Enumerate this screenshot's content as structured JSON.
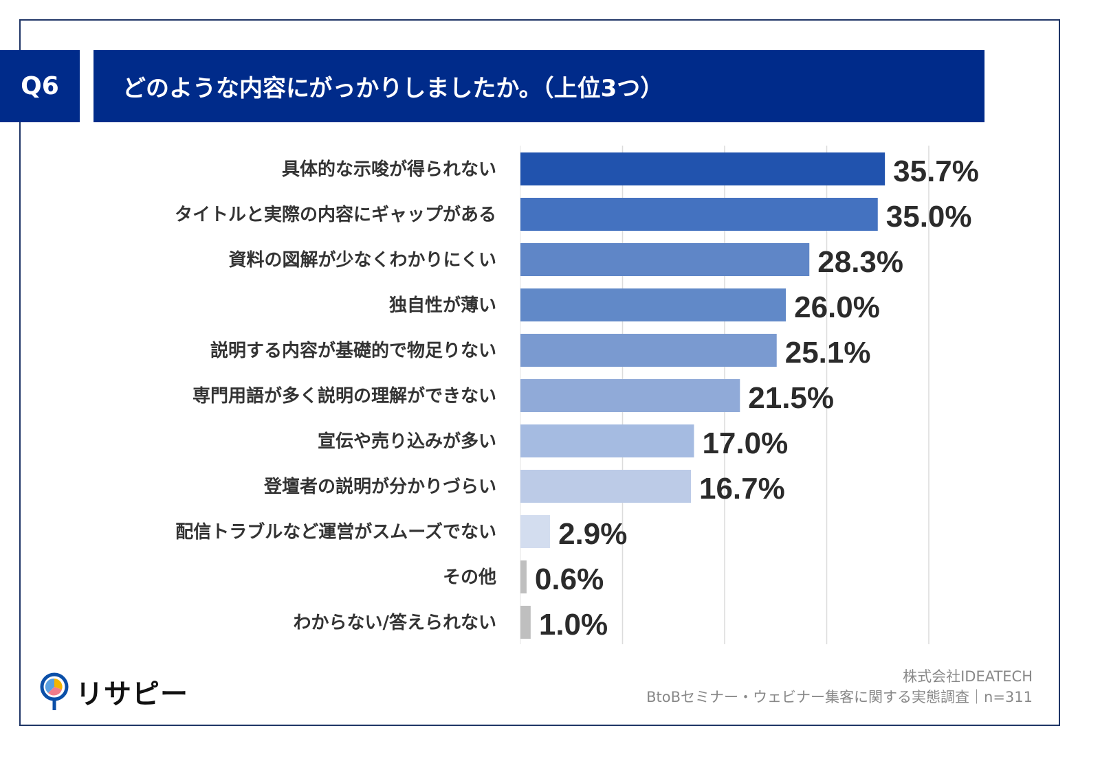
{
  "header": {
    "question_no": "Q6",
    "title": "どのような内容にがっかりしましたか。（上位3つ）"
  },
  "chart_data": {
    "type": "bar",
    "orientation": "horizontal",
    "title": "",
    "xlabel": "",
    "ylabel": "",
    "xlim": [
      0,
      40
    ],
    "grid": true,
    "categories": [
      "具体的な示唆が得られない",
      "タイトルと実際の内容にギャップがある",
      "資料の図解が少なくわかりにくい",
      "独自性が薄い",
      "説明する内容が基礎的で物足りない",
      "専門用語が多く説明の理解ができない",
      "宣伝や売り込みが多い",
      "登壇者の説明が分かりづらい",
      "配信トラブルなど運営がスムーズでない",
      "その他",
      "わからない/答えられない"
    ],
    "values": [
      35.7,
      35.0,
      28.3,
      26.0,
      25.1,
      21.5,
      17.0,
      16.7,
      2.9,
      0.6,
      1.0
    ],
    "data_labels": [
      "35.7%",
      "35.0%",
      "28.3%",
      "26.0%",
      "25.1%",
      "21.5%",
      "17.0%",
      "16.7%",
      "2.9%",
      "0.6%",
      "1.0%"
    ],
    "colors": [
      "#2153ae",
      "#4472c0",
      "#5f86c7",
      "#6189c8",
      "#7a9ad0",
      "#90aad8",
      "#a5bbe1",
      "#bccbe7",
      "#d3ddef",
      "#bfbfbf",
      "#bfbfbf"
    ]
  },
  "footer": {
    "company": "株式会社IDEATECH",
    "survey": "BtoBセミナー・ウェビナー集客に関する実態調査｜n=311"
  },
  "logo": {
    "text": "リサピー"
  }
}
